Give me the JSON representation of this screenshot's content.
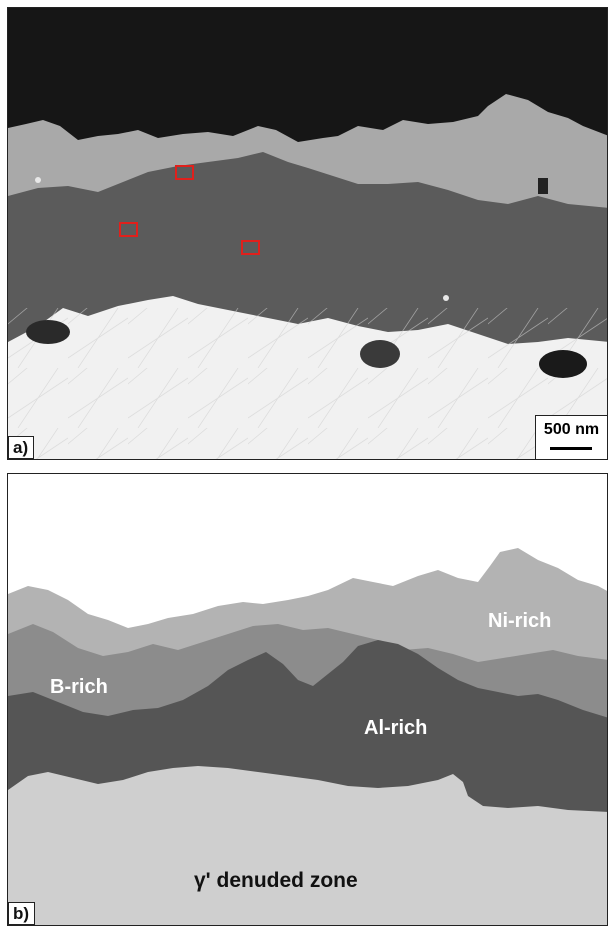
{
  "panel_a": {
    "label": "a)",
    "scale_bar": "500 nm",
    "colors": {
      "background": "#161616",
      "oxide_light": "#a9a9a9",
      "oxide_dark": "#5b5b5b",
      "substrate": "#f1f1f1",
      "roi_box": "#e0201c"
    }
  },
  "panel_b": {
    "label": "b)",
    "regions": {
      "ni_rich": "Ni-rich",
      "b_rich": "B-rich",
      "al_rich": "Al-rich",
      "gamma_prime": "γ' denuded zone"
    },
    "colors": {
      "background": "#ffffff",
      "ni_rich": "#b3b3b3",
      "b_rich": "#8c8c8c",
      "al_rich": "#555555",
      "gamma_prime": "#cfcfcf"
    }
  }
}
